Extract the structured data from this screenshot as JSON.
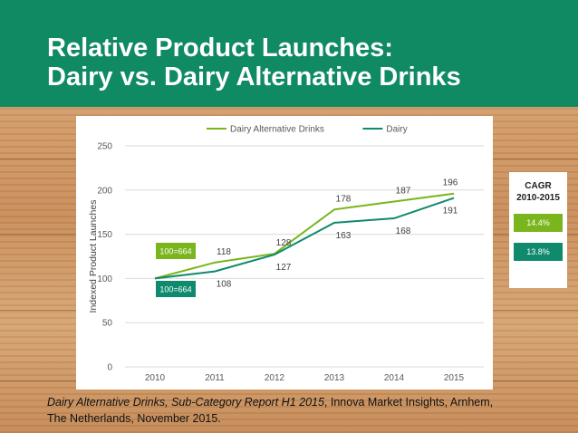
{
  "slide": {
    "title_line1": "Relative Product Launches:",
    "title_line2": "Dairy vs. Dairy Alternative Drinks"
  },
  "colors": {
    "header_bg": "#0f8a63",
    "dairy_alt": "#7ab51d",
    "dairy": "#0f8a6c"
  },
  "chart_data": {
    "type": "line",
    "title": "",
    "xlabel": "",
    "ylabel": "Indexed Product Launches",
    "x": [
      "2010",
      "2011",
      "2012",
      "2013",
      "2014",
      "2015"
    ],
    "ylim": [
      0,
      250
    ],
    "yticks": [
      0,
      50,
      100,
      150,
      200,
      250
    ],
    "grid": true,
    "legend": "top",
    "series": [
      {
        "name": "Dairy Alternative Drinks",
        "values": [
          100,
          118,
          128,
          178,
          187,
          196
        ],
        "labels": [
          "",
          "118",
          "128",
          "178",
          "187",
          "196"
        ],
        "label_position": "above",
        "color": "#7ab51d"
      },
      {
        "name": "Dairy",
        "values": [
          100,
          108,
          127,
          163,
          168,
          191
        ],
        "labels": [
          "",
          "108",
          "127",
          "163",
          "168",
          "191"
        ],
        "label_position": "below",
        "color": "#0f8a6c"
      }
    ],
    "annotations": [
      {
        "text": "100=664",
        "series": "Dairy Alternative Drinks",
        "color": "#7ab51d"
      },
      {
        "text": "100=664",
        "series": "Dairy",
        "color": "#0f8a6c"
      }
    ]
  },
  "cagr": {
    "title_line1": "CAGR",
    "title_line2": "2010-2015",
    "dairy_alt": "14.4%",
    "dairy": "13.8%"
  },
  "caption": {
    "italic": "Dairy Alternative Drinks, Sub-Category Report H1 2015",
    "rest_line1": ", Innova Market Insights, Arnhem,",
    "line2": "The Netherlands, November 2015."
  }
}
